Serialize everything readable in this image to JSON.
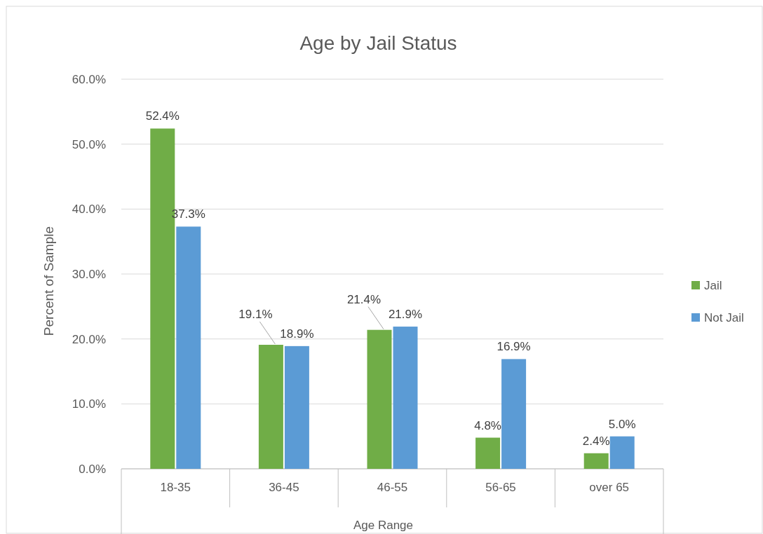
{
  "chart_data": {
    "type": "bar",
    "title": "Age by Jail Status",
    "xlabel": "Age Range",
    "ylabel": "Percent of Sample",
    "categories": [
      "18-35",
      "36-45",
      "46-55",
      "56-65",
      "over 65"
    ],
    "series": [
      {
        "name": "Jail",
        "color": "#70ad47",
        "values": [
          52.4,
          19.1,
          21.4,
          4.8,
          2.4
        ],
        "value_labels": [
          "52.4%",
          "19.1%",
          "21.4%",
          "4.8%",
          "2.4%"
        ]
      },
      {
        "name": "Not Jail",
        "color": "#5b9bd5",
        "values": [
          37.3,
          18.9,
          21.9,
          16.9,
          5.0
        ],
        "value_labels": [
          "37.3%",
          "18.9%",
          "21.9%",
          "16.9%",
          "5.0%"
        ]
      }
    ],
    "ylim": [
      0,
      60
    ],
    "yticks": [
      {
        "value": 0,
        "label": "0.0%"
      },
      {
        "value": 10,
        "label": "10.0%"
      },
      {
        "value": 20,
        "label": "20.0%"
      },
      {
        "value": 30,
        "label": "30.0%"
      },
      {
        "value": 40,
        "label": "40.0%"
      },
      {
        "value": 50,
        "label": "50.0%"
      },
      {
        "value": 60,
        "label": "60.0%"
      }
    ],
    "grid": "y",
    "legend": "right"
  }
}
